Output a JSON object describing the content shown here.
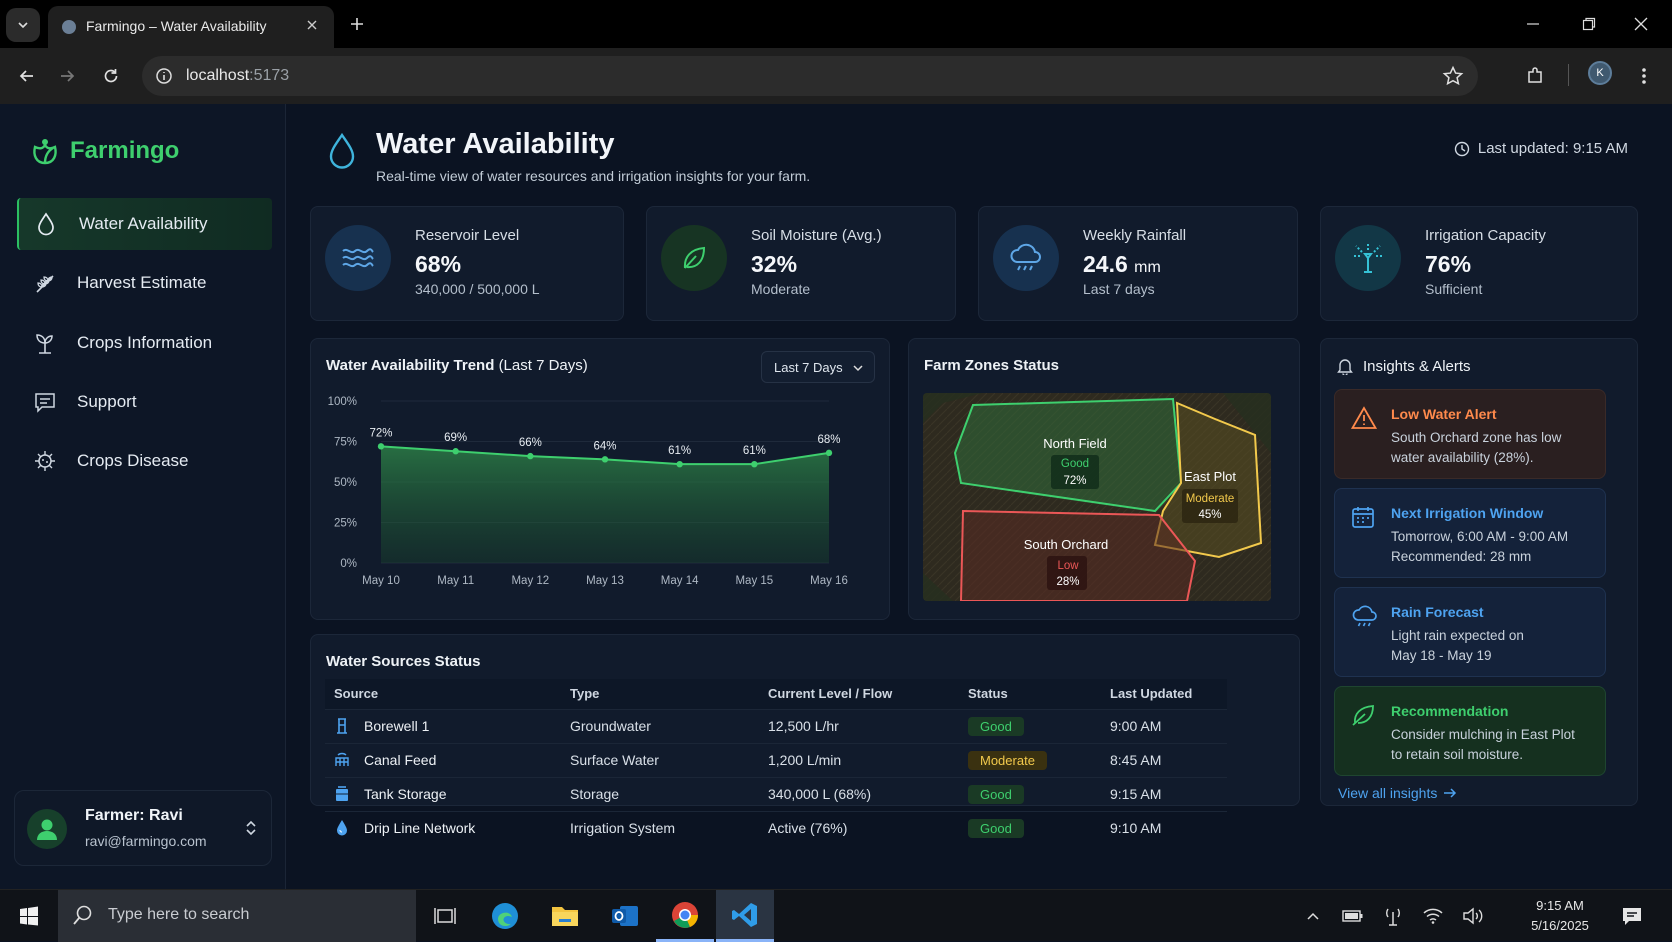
{
  "browser": {
    "tab_title": "Farmingo – Water Availability",
    "url_host": "localhost",
    "url_port": ":5173",
    "profile_initial": "K"
  },
  "app": {
    "brand": "Farmingo",
    "nav": [
      {
        "label": "Water Availability",
        "icon": "water-drop-icon",
        "active": true
      },
      {
        "label": "Harvest Estimate",
        "icon": "wheat-icon"
      },
      {
        "label": "Crops Information",
        "icon": "sprout-icon"
      },
      {
        "label": "Support",
        "icon": "chat-icon"
      },
      {
        "label": "Crops Disease",
        "icon": "virus-icon"
      }
    ],
    "user": {
      "name": "Farmer: Ravi",
      "email": "ravi@farmingo.com"
    }
  },
  "header": {
    "title": "Water Availability",
    "subtitle": "Real-time view of water resources and irrigation insights for your farm.",
    "last_updated": "Last updated: 9:15 AM"
  },
  "stats": [
    {
      "label": "Reservoir Level",
      "value": "68%",
      "unit": "",
      "sub": "340,000 / 500,000 L",
      "icon": "waves-icon",
      "color": "#3b82c4"
    },
    {
      "label": "Soil Moisture (Avg.)",
      "value": "32%",
      "unit": "",
      "sub": "Moderate",
      "icon": "leaf-icon",
      "color": "#2fa85a"
    },
    {
      "label": "Weekly Rainfall",
      "value": "24.6",
      "unit": "mm",
      "sub": "Last 7 days",
      "icon": "rain-cloud-icon",
      "color": "#3b82c4"
    },
    {
      "label": "Irrigation Capacity",
      "value": "76%",
      "unit": "",
      "sub": "Sufficient",
      "icon": "sprinkler-icon",
      "color": "#2fb3c9"
    }
  ],
  "trend": {
    "title": "Water Availability Trend",
    "title_suffix": "(Last 7 Days)",
    "range_label": "Last 7 Days",
    "y_ticks": [
      "100%",
      "75%",
      "50%",
      "25%",
      "0%"
    ]
  },
  "chart_data": {
    "type": "area",
    "title": "Water Availability Trend (Last 7 Days)",
    "x": [
      "May 10",
      "May 11",
      "May 12",
      "May 13",
      "May 14",
      "May 15",
      "May 16"
    ],
    "values": [
      72,
      69,
      66,
      64,
      61,
      61,
      68
    ],
    "labels": [
      "72%",
      "69%",
      "66%",
      "64%",
      "61%",
      "61%",
      "68%"
    ],
    "ylim": [
      0,
      100
    ],
    "grid": true,
    "color": "#3ecf6e"
  },
  "zones": {
    "title": "Farm Zones Status",
    "items": [
      {
        "name": "North Field",
        "status": "Good",
        "value": "72%",
        "color": "#3ecf6e"
      },
      {
        "name": "East Plot",
        "status": "Moderate",
        "value": "45%",
        "color": "#f2c94c"
      },
      {
        "name": "South Orchard",
        "status": "Low",
        "value": "28%",
        "color": "#eb5757"
      }
    ]
  },
  "insights": {
    "title": "Insights & Alerts",
    "items": [
      {
        "title": "Low Water Alert",
        "line1": "South Orchard zone has low",
        "line2": "water availability (28%).",
        "color": "#ff8a4c",
        "icon": "warning-icon"
      },
      {
        "title": "Next Irrigation Window",
        "line1": "Tomorrow, 6:00 AM - 9:00 AM",
        "line2": "Recommended: 28 mm",
        "color": "#4ea3f0",
        "icon": "calendar-icon"
      },
      {
        "title": "Rain Forecast",
        "line1": "Light rain expected on",
        "line2": "May 18 - May 19",
        "color": "#4ea3f0",
        "icon": "rain-cloud-icon"
      },
      {
        "title": "Recommendation",
        "line1": "Consider mulching in East Plot",
        "line2": "to retain soil moisture.",
        "color": "#3ecf6e",
        "icon": "leaf-icon"
      }
    ],
    "view_all": "View all insights"
  },
  "sources": {
    "title": "Water Sources Status",
    "columns": [
      "Source",
      "Type",
      "Current Level / Flow",
      "Status",
      "Last Updated"
    ],
    "rows": [
      {
        "source": "Borewell 1",
        "type": "Groundwater",
        "level": "12,500 L/hr",
        "status": "Good",
        "updated": "9:00 AM",
        "icon": "borewell-icon"
      },
      {
        "source": "Canal Feed",
        "type": "Surface Water",
        "level": "1,200 L/min",
        "status": "Moderate",
        "updated": "8:45 AM",
        "icon": "canal-icon"
      },
      {
        "source": "Tank Storage",
        "type": "Storage",
        "level": "340,000 L (68%)",
        "status": "Good",
        "updated": "9:15 AM",
        "icon": "tank-icon"
      },
      {
        "source": "Drip Line Network",
        "type": "Irrigation System",
        "level": "Active (76%)",
        "status": "Good",
        "updated": "9:10 AM",
        "icon": "drip-icon"
      }
    ]
  },
  "taskbar": {
    "search_placeholder": "Type here to search",
    "time": "9:15 AM",
    "date": "5/16/2025"
  }
}
